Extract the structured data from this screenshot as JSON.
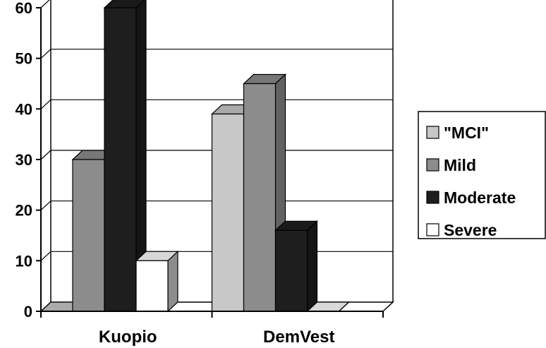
{
  "chart_data": {
    "type": "bar",
    "categories": [
      "Kuopio",
      "DemVest"
    ],
    "series": [
      {
        "name": "\"MCI\"",
        "values": [
          0,
          39
        ],
        "color": "#c8c8c8"
      },
      {
        "name": "Mild",
        "values": [
          30,
          45
        ],
        "color": "#8c8c8c"
      },
      {
        "name": "Moderate",
        "values": [
          60,
          16
        ],
        "color": "#1e1e1e"
      },
      {
        "name": "Severe",
        "values": [
          10,
          0
        ],
        "color": "#ffffff"
      }
    ],
    "ylim": [
      0,
      60
    ],
    "yticks": [
      "0",
      "10",
      "20",
      "30",
      "40",
      "50",
      "60"
    ],
    "grid": true,
    "legend_position": "right",
    "style": "3d"
  }
}
